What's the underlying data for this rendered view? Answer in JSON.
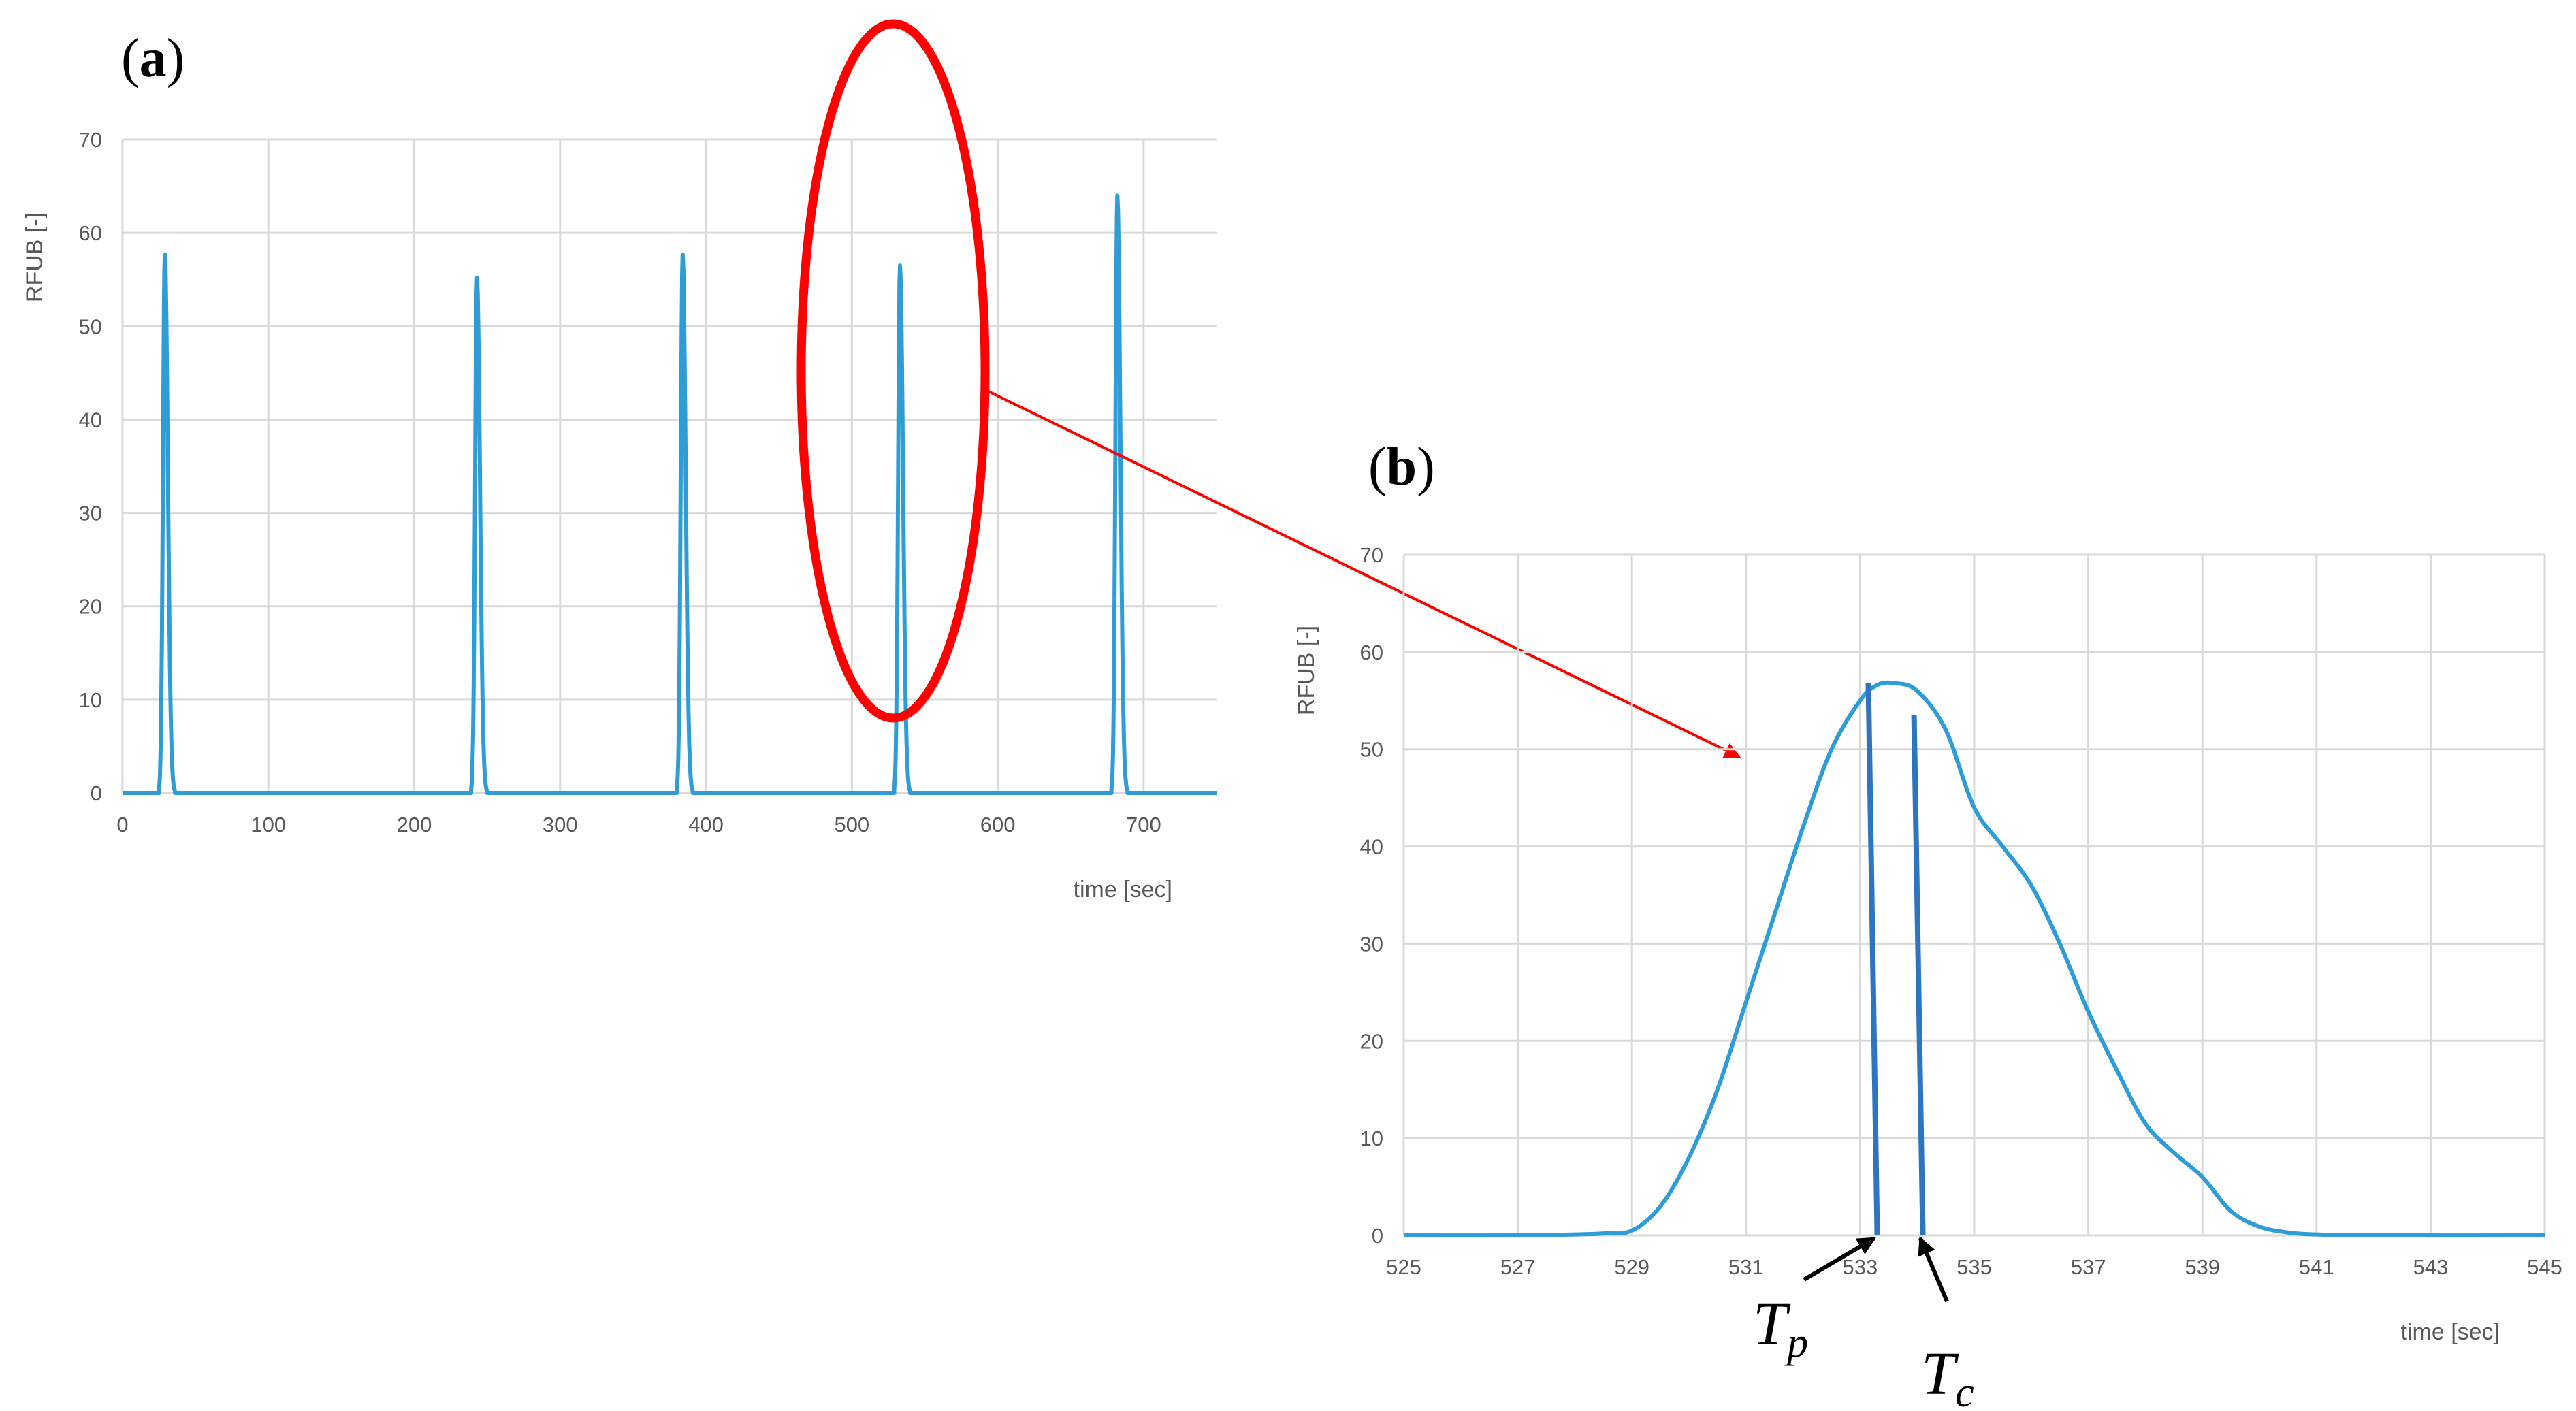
{
  "colors": {
    "series": "#2e9cd6",
    "grid": "#d9d9d9",
    "highlight": "#ff0000",
    "marker_lines": "#2f74c0",
    "arrows": "#000000"
  },
  "chart_data": [
    {
      "id": "a",
      "panel_label": "a",
      "type": "line",
      "title": "",
      "xlabel": "time [sec]",
      "ylabel": "RFUB [-]",
      "xlim": [
        0,
        750
      ],
      "ylim": [
        0,
        70
      ],
      "x_ticks": [
        0,
        100,
        200,
        300,
        400,
        500,
        600,
        700
      ],
      "y_ticks": [
        0,
        10,
        20,
        30,
        40,
        50,
        60,
        70
      ],
      "grid": true,
      "legend": "none",
      "series": [
        {
          "peaks": [
            {
              "t": 29,
              "height": 57.7
            },
            {
              "t": 243,
              "height": 55.2
            },
            {
              "t": 384,
              "height": 57.7
            },
            {
              "t": 533,
              "height": 56.5
            },
            {
              "t": 682,
              "height": 64.0
            }
          ],
          "peak_rise_sec": 4,
          "peak_fall_sec": 7
        }
      ],
      "annotation": {
        "type": "ellipse",
        "center": [
          530,
          45
        ],
        "note": "peak enlarged in panel b"
      }
    },
    {
      "id": "b",
      "panel_label": "b",
      "type": "line",
      "title": "",
      "xlabel": "time [sec]",
      "ylabel": "RFUB [-]",
      "xlim": [
        525,
        545
      ],
      "ylim": [
        0,
        70
      ],
      "x_ticks": [
        525,
        527,
        529,
        531,
        533,
        535,
        537,
        539,
        541,
        543,
        545
      ],
      "y_ticks": [
        0,
        10,
        20,
        30,
        40,
        50,
        60,
        70
      ],
      "grid": true,
      "legend": "none",
      "series": [
        {
          "points": [
            [
              525,
              0
            ],
            [
              527,
              0
            ],
            [
              528,
              0.1
            ],
            [
              528.5,
              0.2
            ],
            [
              529,
              0.5
            ],
            [
              529.5,
              3
            ],
            [
              530,
              8
            ],
            [
              530.5,
              15
            ],
            [
              531,
              24
            ],
            [
              531.5,
              33
            ],
            [
              532,
              42
            ],
            [
              532.5,
              50
            ],
            [
              533,
              55
            ],
            [
              533.3,
              56.6
            ],
            [
              533.6,
              56.8
            ],
            [
              534,
              56
            ],
            [
              534.5,
              52
            ],
            [
              535,
              44
            ],
            [
              535.5,
              40
            ],
            [
              536,
              36
            ],
            [
              536.5,
              30
            ],
            [
              537,
              23
            ],
            [
              537.5,
              17
            ],
            [
              538,
              11.5
            ],
            [
              538.5,
              8.5
            ],
            [
              539,
              6
            ],
            [
              539.5,
              2.5
            ],
            [
              540,
              0.9
            ],
            [
              540.5,
              0.3
            ],
            [
              541,
              0.1
            ],
            [
              542,
              0
            ],
            [
              545,
              0
            ]
          ]
        }
      ],
      "markers": [
        {
          "name": "Tp",
          "label": "T",
          "sub": "p",
          "x": 533.3,
          "y_top": 56.8
        },
        {
          "name": "Tc",
          "label": "T",
          "sub": "c",
          "x": 534.1,
          "y_top": 53.5
        }
      ]
    }
  ]
}
